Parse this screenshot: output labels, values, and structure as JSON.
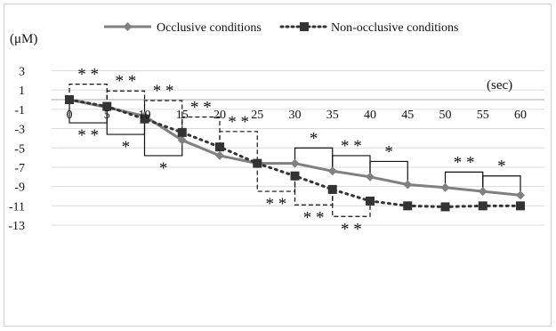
{
  "chart_data": {
    "type": "line",
    "title": "",
    "xlabel": "",
    "ylabel": "",
    "x_unit": "(sec)",
    "y_unit": "(μM)",
    "x": [
      0,
      5,
      10,
      15,
      20,
      25,
      30,
      35,
      40,
      45,
      50,
      55,
      60
    ],
    "x_tick_labels": [
      "0",
      "5",
      "10",
      "15",
      "20",
      "25",
      "30",
      "35",
      "40",
      "45",
      "50",
      "55",
      "60"
    ],
    "y_tick_labels": [
      "3",
      "1",
      "-1",
      "-3",
      "-5",
      "-7",
      "-9",
      "-11",
      "-13"
    ],
    "y_ticks": [
      3,
      1,
      -1,
      -3,
      -5,
      -7,
      -9,
      -11,
      -13
    ],
    "ylim": [
      -13,
      3
    ],
    "xlim": [
      0,
      60
    ],
    "grid": "horizontal",
    "legend_position": "top",
    "series": [
      {
        "name": "Occlusive conditions",
        "marker": "diamond",
        "line_style": "solid",
        "color": "#808080",
        "values": [
          0,
          -0.8,
          -1.7,
          -4.2,
          -5.8,
          -6.6,
          -6.6,
          -7.4,
          -8.0,
          -8.8,
          -9.1,
          -9.5,
          -9.9
        ]
      },
      {
        "name": "Non-occlusive conditions",
        "marker": "square",
        "line_style": "dotted",
        "color": "#333333",
        "values": [
          0,
          -0.7,
          -2.0,
          -3.4,
          -4.9,
          -6.6,
          -7.9,
          -9.3,
          -10.5,
          -11.0,
          -11.1,
          -11.0,
          -11.0
        ]
      }
    ],
    "significance_marks": [
      {
        "from": 0,
        "to": 5,
        "label": "* *",
        "side": "above",
        "style": "dashed"
      },
      {
        "from": 5,
        "to": 10,
        "label": "* *",
        "side": "above",
        "style": "dashed"
      },
      {
        "from": 10,
        "to": 15,
        "label": "* *",
        "side": "above",
        "style": "dashed"
      },
      {
        "from": 15,
        "to": 20,
        "label": "* *",
        "side": "above",
        "style": "dashed"
      },
      {
        "from": 20,
        "to": 25,
        "label": "* *",
        "side": "above",
        "style": "dashed"
      },
      {
        "from": 0,
        "to": 5,
        "label": "* *",
        "side": "below",
        "style": "solid"
      },
      {
        "from": 5,
        "to": 10,
        "label": "*",
        "side": "below",
        "style": "solid"
      },
      {
        "from": 10,
        "to": 15,
        "label": "*",
        "side": "below",
        "style": "solid"
      },
      {
        "from": 25,
        "to": 30,
        "label": "* *",
        "side": "below",
        "style": "dashed"
      },
      {
        "from": 30,
        "to": 35,
        "label": "* *",
        "side": "below",
        "style": "dashed"
      },
      {
        "from": 35,
        "to": 40,
        "label": "* *",
        "side": "below",
        "style": "dashed"
      },
      {
        "from": 30,
        "to": 35,
        "label": "*",
        "side": "above",
        "style": "solid"
      },
      {
        "from": 35,
        "to": 40,
        "label": "* *",
        "side": "above",
        "style": "solid"
      },
      {
        "from": 40,
        "to": 45,
        "label": "*",
        "side": "above",
        "style": "solid"
      },
      {
        "from": 50,
        "to": 55,
        "label": "* *",
        "side": "above",
        "style": "solid"
      },
      {
        "from": 55,
        "to": 60,
        "label": "*",
        "side": "above",
        "style": "solid"
      }
    ]
  }
}
